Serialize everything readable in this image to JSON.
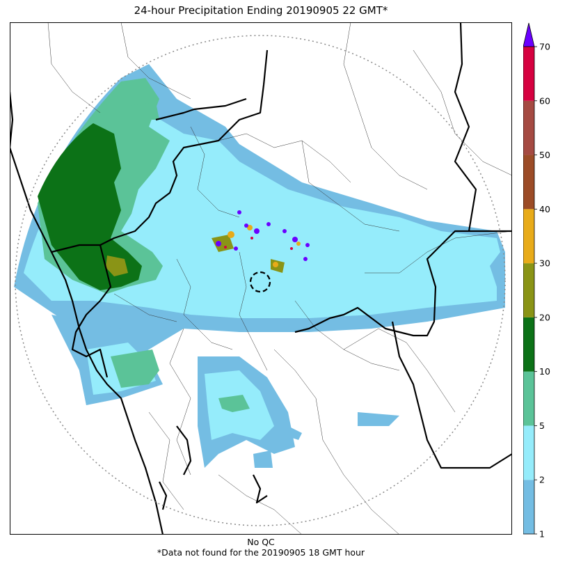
{
  "title": "24-hour Precipitation Ending 20190905 22 GMT*",
  "footer": {
    "line1": "No QC",
    "line2": "*Data not found for the 20190905 18 GMT hour"
  },
  "colorbar": {
    "levels": [
      {
        "label": "1",
        "color": "#74bde3"
      },
      {
        "label": "2",
        "color": "#95ecfb"
      },
      {
        "label": "5",
        "color": "#5bc398"
      },
      {
        "label": "10",
        "color": "#0c7217"
      },
      {
        "label": "20",
        "color": "#8a9416"
      },
      {
        "label": "30",
        "color": "#e8ab19"
      },
      {
        "label": "40",
        "color": "#9c4c27"
      },
      {
        "label": "50",
        "color": "#a54a42"
      },
      {
        "label": "60",
        "color": "#d60140"
      },
      {
        "label": "70",
        "color": ""
      }
    ],
    "extend_color": "#6b00ff",
    "units": ""
  },
  "map": {
    "border_color": "#000000",
    "range_ring_color": "#888888"
  }
}
